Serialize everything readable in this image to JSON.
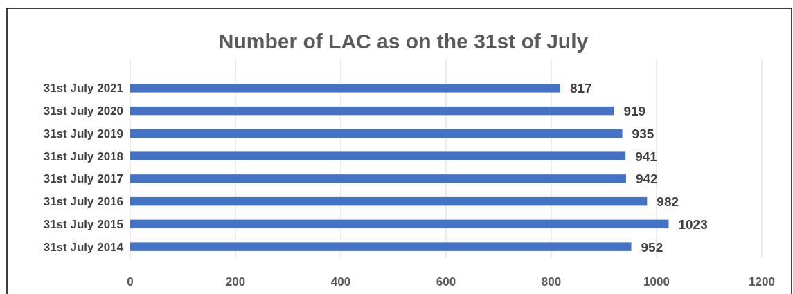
{
  "chart_data": {
    "type": "bar",
    "title": "Number of LAC as on the 31st of July",
    "orientation": "horizontal",
    "categories": [
      "31st July 2021",
      "31st July 2020",
      "31st July 2019",
      "31st July 2018",
      "31st July 2017",
      "31st July 2016",
      "31st July 2015",
      "31st July 2014"
    ],
    "values": [
      817,
      919,
      935,
      941,
      942,
      982,
      1023,
      952
    ],
    "color": "#4472c4",
    "xlim": [
      0,
      1200
    ],
    "xticks": [
      0,
      200,
      400,
      600,
      800,
      1000,
      1200
    ],
    "grid": "x",
    "data_labels": true
  }
}
